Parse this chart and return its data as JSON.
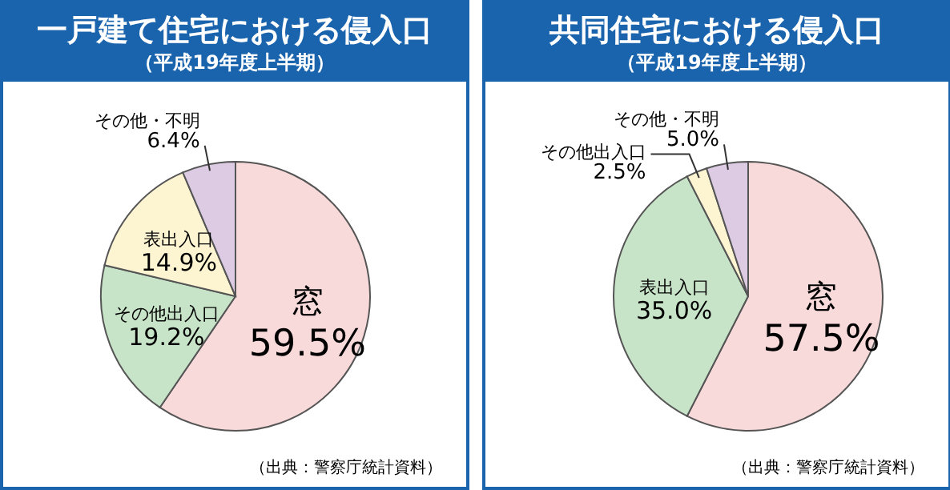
{
  "chart_data": [
    {
      "type": "pie",
      "title": "一戸建て住宅における侵入口",
      "subtitle": "（平成19年度上半期）",
      "categories": [
        "窓",
        "その他出入口",
        "表出入口",
        "その他・不明"
      ],
      "values": [
        59.5,
        19.2,
        14.9,
        6.4
      ],
      "value_labels": [
        "59.5%",
        "19.2%",
        "14.9%",
        "6.4%"
      ],
      "colors": [
        "#f9dadb",
        "#c8e4c8",
        "#fdf4d2",
        "#dccbe3"
      ],
      "annotations": [
        "（出典：警察庁統計資料）"
      ]
    },
    {
      "type": "pie",
      "title": "共同住宅における侵入口",
      "subtitle": "（平成19年度上半期）",
      "categories": [
        "窓",
        "表出入口",
        "その他出入口",
        "その他・不明"
      ],
      "values": [
        57.5,
        35.0,
        2.5,
        5.0
      ],
      "value_labels": [
        "57.5%",
        "35.0%",
        "2.5%",
        "5.0%"
      ],
      "colors": [
        "#f9dadb",
        "#c8e4c8",
        "#fdf4d2",
        "#dccbe3"
      ],
      "annotations": [
        "（出典：警察庁統計資料）"
      ]
    }
  ]
}
